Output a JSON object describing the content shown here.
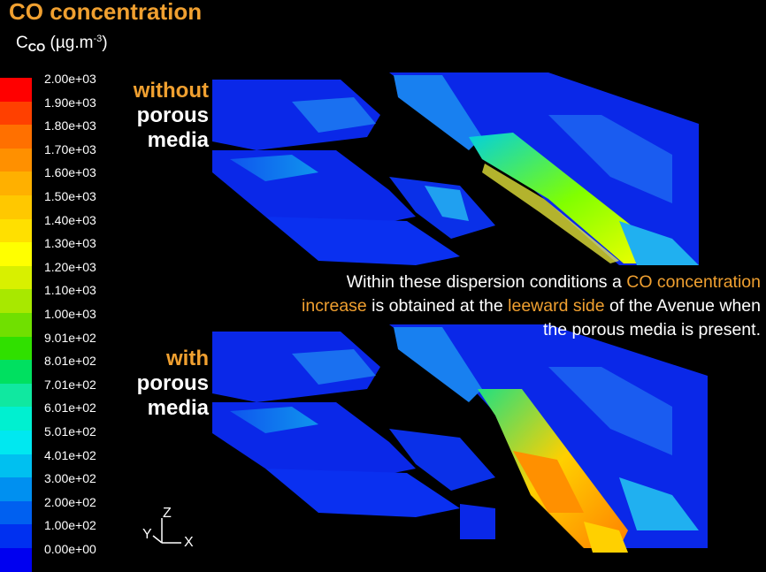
{
  "header": {
    "title": "CO concentration",
    "unit": {
      "symbol": "C",
      "subscript": "CO",
      "unit_prefix": "(µg.m",
      "superscript": "-3",
      "unit_suffix": ")"
    }
  },
  "colorbar": {
    "labels": [
      "2.00e+03",
      "1.90e+03",
      "1.80e+03",
      "1.70e+03",
      "1.60e+03",
      "1.50e+03",
      "1.40e+03",
      "1.30e+03",
      "1.20e+03",
      "1.10e+03",
      "1.00e+03",
      "9.01e+02",
      "8.01e+02",
      "7.01e+02",
      "6.01e+02",
      "5.01e+02",
      "4.01e+02",
      "3.00e+02",
      "2.00e+02",
      "1.00e+02",
      "0.00e+00"
    ],
    "colors": [
      "#ff0000",
      "#ff4000",
      "#ff7000",
      "#ff9000",
      "#ffb000",
      "#ffc800",
      "#ffe000",
      "#ffff00",
      "#d8f000",
      "#a8e800",
      "#70e000",
      "#30e000",
      "#00e060",
      "#10e8a0",
      "#00f0d0",
      "#00e8f0",
      "#00c0f0",
      "#0090f0",
      "#0060f0",
      "#0030f0",
      "#0000f0"
    ]
  },
  "views": {
    "top": {
      "line1": "without",
      "line2": "porous",
      "line3": "media"
    },
    "bottom": {
      "line1": "with",
      "line2": "porous",
      "line3": "media"
    }
  },
  "annotation": {
    "part1": "Within these dispersion conditions a ",
    "part2": "CO concentration",
    "part3": "increase",
    "part4": " is obtained at the ",
    "part5": "leeward side",
    "part6": " of the Avenue when",
    "part7": "the porous media is present."
  },
  "axes": {
    "z": "Z",
    "y": "Y",
    "x": "X"
  }
}
